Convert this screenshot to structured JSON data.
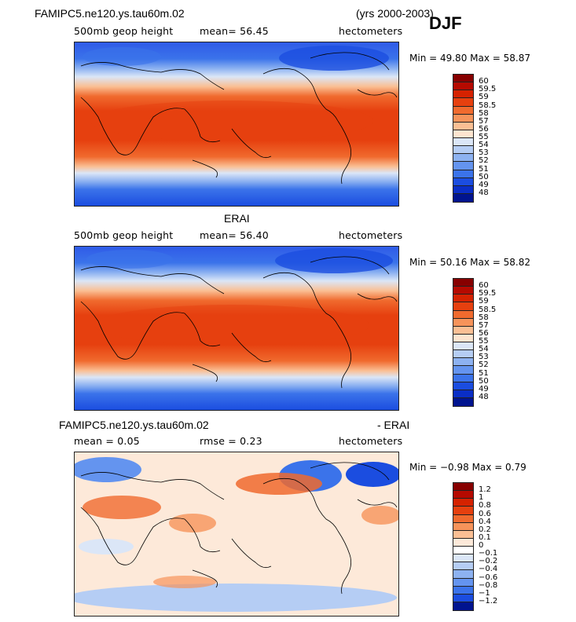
{
  "header": {
    "title": "FAMIPC5.ne120.ys.tau60m.02",
    "years": "(yrs 2000-2003)",
    "season": "DJF"
  },
  "panels": [
    {
      "title": "",
      "variable": "500mb geop height",
      "mean_label": "mean=   56.45",
      "units": "hectometers",
      "minmax": "Min =   49.80  Max =   58.87",
      "levels": [
        "60",
        "59.5",
        "59",
        "58.5",
        "58",
        "57",
        "56",
        "55",
        "54",
        "53",
        "52",
        "51",
        "50",
        "49",
        "48"
      ],
      "colors": [
        "#870000",
        "#b50a00",
        "#d52200",
        "#e6400f",
        "#f06a2e",
        "#f6935a",
        "#fabf94",
        "#fde4cf",
        "#dbe6f7",
        "#b5cdf4",
        "#8db2f1",
        "#6494ef",
        "#3b73ea",
        "#1b4de0",
        "#0a2ec6",
        "#00148f"
      ]
    },
    {
      "title": "ERAI",
      "variable": "500mb geop height",
      "mean_label": "mean=   56.40",
      "units": "hectometers",
      "minmax": "Min =   50.16  Max =   58.82",
      "levels": [
        "60",
        "59.5",
        "59",
        "58.5",
        "58",
        "57",
        "56",
        "55",
        "54",
        "53",
        "52",
        "51",
        "50",
        "49",
        "48"
      ],
      "colors": [
        "#870000",
        "#b50a00",
        "#d52200",
        "#e6400f",
        "#f06a2e",
        "#f6935a",
        "#fabf94",
        "#fde4cf",
        "#dbe6f7",
        "#b5cdf4",
        "#8db2f1",
        "#6494ef",
        "#3b73ea",
        "#1b4de0",
        "#0a2ec6",
        "#00148f"
      ]
    },
    {
      "title": "FAMIPC5.ne120.ys.tau60m.02",
      "title_suffix": "- ERAI",
      "variable": "",
      "mean_label": "mean =     0.05",
      "rmse_label": "rmse =     0.23",
      "units": "hectometers",
      "minmax": "Min =  −0.98  Max =     0.79",
      "levels": [
        "1.2",
        "1",
        "0.8",
        "0.6",
        "0.4",
        "0.2",
        "0.1",
        "0",
        "−0.1",
        "−0.2",
        "−0.4",
        "−0.6",
        "−0.8",
        "−1",
        "−1.2"
      ],
      "colors": [
        "#870000",
        "#b50a00",
        "#d52200",
        "#e6400f",
        "#f06a2e",
        "#f6935a",
        "#fabf94",
        "#fde9d9",
        "#ffffff",
        "#dbe6f7",
        "#b5cdf4",
        "#8db2f1",
        "#6494ef",
        "#3b73ea",
        "#1b4de0",
        "#00148f"
      ]
    }
  ],
  "chart_data": [
    {
      "type": "heatmap",
      "title": "FAMIPC5.ne120.ys.tau60m.02",
      "subtitle": "500mb geop height",
      "units": "hectometers",
      "mean": 56.45,
      "min": 49.8,
      "max": 58.87,
      "period": "DJF (yrs 2000-2003)",
      "contour_levels": [
        48,
        49,
        50,
        51,
        52,
        53,
        54,
        55,
        56,
        57,
        58,
        58.5,
        59,
        59.5,
        60
      ]
    },
    {
      "type": "heatmap",
      "title": "ERAI",
      "subtitle": "500mb geop height",
      "units": "hectometers",
      "mean": 56.4,
      "min": 50.16,
      "max": 58.82,
      "contour_levels": [
        48,
        49,
        50,
        51,
        52,
        53,
        54,
        55,
        56,
        57,
        58,
        58.5,
        59,
        59.5,
        60
      ]
    },
    {
      "type": "heatmap",
      "title": "FAMIPC5.ne120.ys.tau60m.02 - ERAI",
      "units": "hectometers",
      "mean": 0.05,
      "rmse": 0.23,
      "min": -0.98,
      "max": 0.79,
      "contour_levels": [
        -1.2,
        -1,
        -0.8,
        -0.6,
        -0.4,
        -0.2,
        -0.1,
        0,
        0.1,
        0.2,
        0.4,
        0.6,
        0.8,
        1,
        1.2
      ]
    }
  ]
}
